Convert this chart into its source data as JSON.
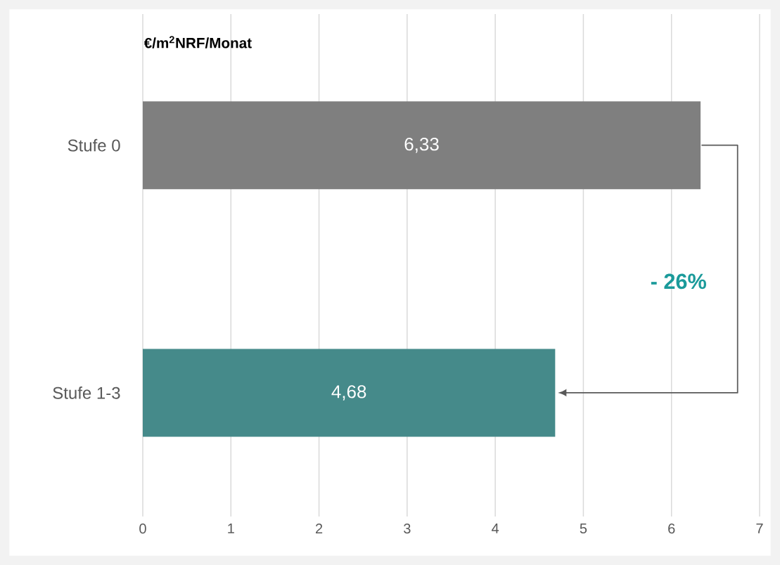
{
  "chart_data": {
    "type": "bar",
    "orientation": "horizontal",
    "ylabel": "€/m$^{2}$NRF/Monat",
    "categories": [
      "Stufe 0",
      "Stufe 1-3"
    ],
    "values": [
      6.33,
      4.68
    ],
    "colors": [
      "#7f7f7f",
      "#458a8a"
    ],
    "value_labels": [
      "6,33",
      "4,68"
    ],
    "xlim": [
      0,
      7
    ],
    "xticks": [
      0,
      1,
      2,
      3,
      4,
      5,
      6,
      7
    ],
    "grid": "x",
    "annotations": [
      "- 26%"
    ]
  }
}
